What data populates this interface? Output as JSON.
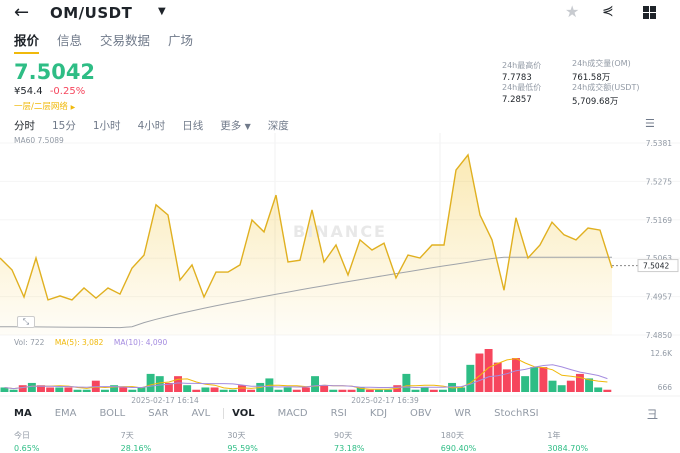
{
  "header": {
    "title": "OM/USDT",
    "back_icon": "arrow-left",
    "icons": [
      "star-icon",
      "share-icon",
      "grid-icon"
    ]
  },
  "tabs": [
    "报价",
    "信息",
    "交易数据",
    "广场"
  ],
  "price": {
    "last": "7.5042",
    "cny": "¥54.4",
    "change": "-0.25%",
    "depth_link": "一层/二层网络"
  },
  "stats": {
    "high_label": "24h最高价",
    "high": "7.7783",
    "low_label": "24h最低价",
    "low": "7.2857",
    "vol_om_label": "24h成交量(OM)",
    "vol_om": "761.58万",
    "vol_usdt_label": "24h成交额(USDT)",
    "vol_usdt": "5,709.68万"
  },
  "intervals": [
    "分时",
    "15分",
    "1小时",
    "4小时",
    "日线",
    "更多",
    "深度"
  ],
  "chart": {
    "ma60_label": "MA60 7.5089",
    "y_ticks": [
      "7.5381",
      "7.5275",
      "7.5169",
      "7.5063",
      "7.4957",
      "7.4850"
    ],
    "ylim": [
      7.485,
      7.5381
    ],
    "current": "7.5042",
    "watermark": "BINANCE",
    "price_series": [
      7.5063,
      7.503,
      7.4955,
      7.5063,
      7.4947,
      7.4958,
      7.4947,
      7.498,
      7.4952,
      7.498,
      7.4963,
      7.5035,
      7.5071,
      7.521,
      7.5182,
      7.5002,
      7.5044,
      7.4955,
      7.5024,
      7.5024,
      7.5044,
      7.5168,
      7.5135,
      7.5237,
      7.5052,
      7.5057,
      7.5196,
      7.5052,
      7.5099,
      7.5016,
      7.5113,
      7.5085,
      7.5104,
      7.5008,
      7.5071,
      7.5063,
      7.5099,
      7.5099,
      7.5306,
      7.5348,
      7.5182,
      7.5113,
      7.4974,
      7.5174,
      7.5063,
      7.5099,
      7.5162,
      7.5127,
      7.5113,
      7.5146,
      7.514,
      7.5035
    ]
  },
  "volume": {
    "label": "Vol: 722",
    "ma5": "MA(5): 3,082",
    "ma10": "MA(10): 4,090",
    "y_ticks": [
      "12.6K",
      "666"
    ],
    "times": [
      "2025-02-17 16:14",
      "2025-02-17 16:39"
    ],
    "bars": [
      [
        2,
        1
      ],
      [
        1,
        1
      ],
      [
        3,
        0
      ],
      [
        4,
        1
      ],
      [
        3,
        0
      ],
      [
        2,
        0
      ],
      [
        2,
        1
      ],
      [
        2,
        0
      ],
      [
        1,
        1
      ],
      [
        1,
        1
      ],
      [
        5,
        0
      ],
      [
        1,
        1
      ],
      [
        3,
        1
      ],
      [
        2,
        0
      ],
      [
        1,
        1
      ],
      [
        2,
        1
      ],
      [
        8,
        1
      ],
      [
        7,
        1
      ],
      [
        4,
        0
      ],
      [
        7,
        0
      ],
      [
        3,
        1
      ],
      [
        1,
        0
      ],
      [
        2,
        1
      ],
      [
        2,
        0
      ],
      [
        1,
        1
      ],
      [
        1,
        1
      ],
      [
        3,
        0
      ],
      [
        1,
        0
      ],
      [
        4,
        1
      ],
      [
        6,
        1
      ],
      [
        1,
        1
      ],
      [
        2,
        1
      ],
      [
        1,
        0
      ],
      [
        2,
        0
      ],
      [
        7,
        1
      ],
      [
        3,
        0
      ],
      [
        1,
        1
      ],
      [
        1,
        0
      ],
      [
        1,
        0
      ],
      [
        2,
        1
      ],
      [
        1,
        0
      ],
      [
        1,
        1
      ],
      [
        1,
        1
      ],
      [
        3,
        0
      ],
      [
        8,
        1
      ],
      [
        1,
        1
      ],
      [
        2,
        1
      ],
      [
        1,
        0
      ],
      [
        1,
        1
      ],
      [
        4,
        1
      ],
      [
        2,
        1
      ],
      [
        12,
        1
      ],
      [
        17,
        0
      ],
      [
        19,
        0
      ],
      [
        13,
        0
      ],
      [
        10,
        0
      ],
      [
        15,
        0
      ],
      [
        7,
        1
      ],
      [
        11,
        1
      ],
      [
        11,
        0
      ],
      [
        5,
        1
      ],
      [
        3,
        1
      ],
      [
        5,
        0
      ],
      [
        8,
        0
      ],
      [
        6,
        1
      ],
      [
        2,
        1
      ],
      [
        1,
        0
      ]
    ]
  },
  "indicators": [
    "MA",
    "EMA",
    "BOLL",
    "SAR",
    "AVL",
    "VOL",
    "MACD",
    "RSI",
    "KDJ",
    "OBV",
    "WR",
    "StochRSI"
  ],
  "performance": [
    {
      "label": "今日",
      "value": "0.65%"
    },
    {
      "label": "7天",
      "value": "28.16%"
    },
    {
      "label": "30天",
      "value": "95.59%"
    },
    {
      "label": "90天",
      "value": "73.18%"
    },
    {
      "label": "180天",
      "value": "690.40%"
    },
    {
      "label": "1年",
      "value": "3084.70%"
    }
  ],
  "colors": {
    "up": "#2ebd85",
    "down": "#f6465d",
    "line": "#e0b020",
    "accent": "#f0b90b"
  }
}
